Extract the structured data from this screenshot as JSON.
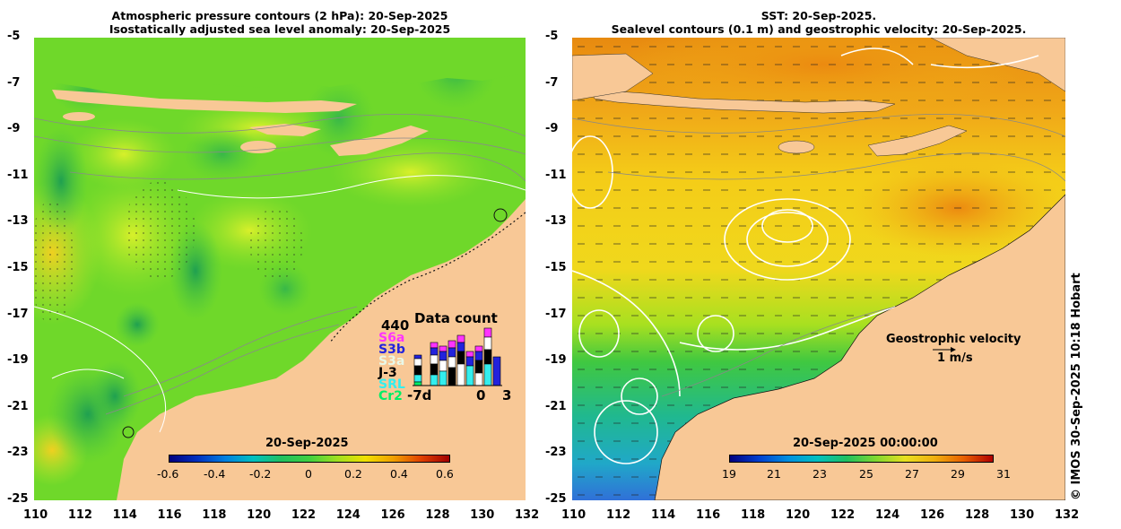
{
  "left_panel": {
    "title_line1": "Atmospheric pressure contours (2 hPa): 20-Sep-2025",
    "title_line2": "Isostatically adjusted sea level anomaly: 20-Sep-2025",
    "colorbar_label": "20-Sep-2025",
    "colorbar_ticks": [
      "-0.6",
      "-0.4",
      "-0.2",
      "0",
      "0.2",
      "0.4",
      "0.6"
    ],
    "data_count": {
      "title": "Data count",
      "max": "440",
      "satellites": [
        "S6a",
        "S3b",
        "S3a",
        "J-3",
        "SRL",
        "Cr2"
      ],
      "x_labels": [
        "-7d",
        "0",
        "3"
      ]
    }
  },
  "right_panel": {
    "title_line1": "SST: 20-Sep-2025.",
    "title_line2": "Sealevel contours (0.1 m) and geostrophic velocity: 20-Sep-2025.",
    "colorbar_label": "20-Sep-2025 00:00:00",
    "colorbar_ticks": [
      "19",
      "21",
      "23",
      "25",
      "27",
      "29",
      "31"
    ],
    "velocity_legend": {
      "label": "Geostrophic velocity",
      "scale": "1 m/s"
    }
  },
  "axes": {
    "y_ticks": [
      "-5",
      "-7",
      "-9",
      "-11",
      "-13",
      "-15",
      "-17",
      "-19",
      "-21",
      "-23",
      "-25"
    ],
    "x_ticks": [
      "110",
      "112",
      "114",
      "116",
      "118",
      "120",
      "122",
      "124",
      "126",
      "128",
      "130",
      "132"
    ]
  },
  "credit": "© IMOS 30-Sep-2025 10:18 Hobart",
  "colors": {
    "land": "#f8c896",
    "sla_base": "#6fd82a",
    "sst_base": "#f2c81a"
  }
}
